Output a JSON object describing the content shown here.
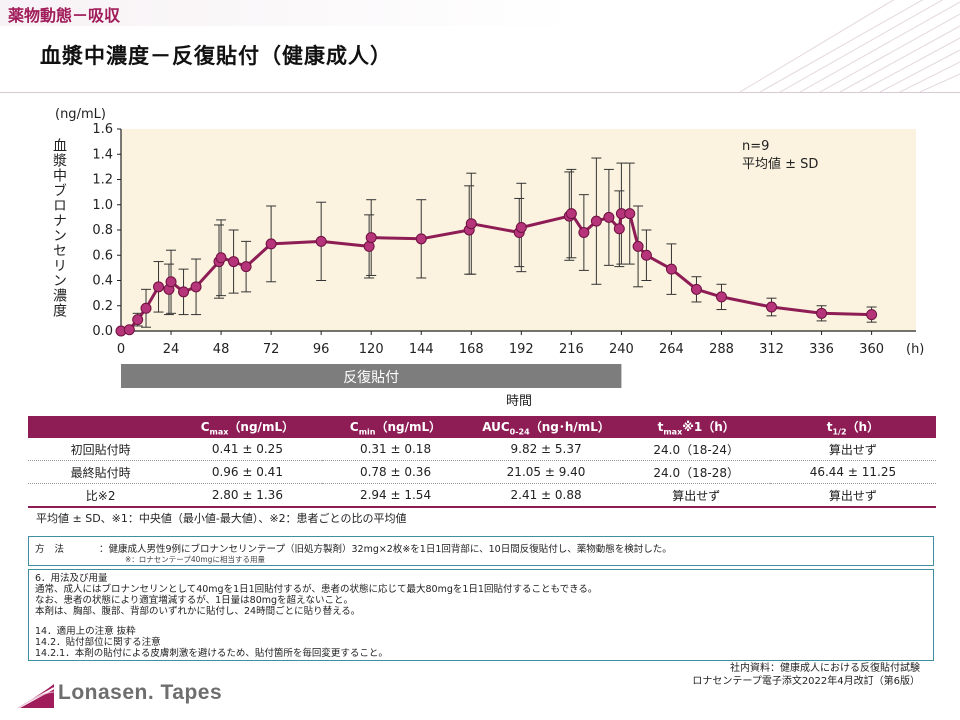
{
  "header": {
    "section": "薬物動態－吸収",
    "title": "血漿中濃度－反復貼付（健康成人）"
  },
  "colors": {
    "accent": "#8e1d56",
    "plot_bg": "#fbf3df",
    "marker": "#b6357a",
    "frame": "#3f8fa0"
  },
  "chart_data": {
    "type": "line",
    "y_unit": "(ng/mL)",
    "x_unit": "(h)",
    "ylabel": "血漿中ブロナンセリン濃度",
    "xlabel": "時間",
    "xlim": [
      0,
      372
    ],
    "ylim": [
      0,
      1.6
    ],
    "xticks": [
      "0",
      "24",
      "48",
      "72",
      "96",
      "120",
      "144",
      "168",
      "192",
      "216",
      "240",
      "264",
      "288",
      "312",
      "336",
      "360"
    ],
    "yticks": [
      "0.0",
      "0.2",
      "0.4",
      "0.6",
      "0.8",
      "1.0",
      "1.2",
      "1.4",
      "1.6"
    ],
    "dosing_bar": {
      "label": "反復貼付",
      "start": 0,
      "end": 240
    },
    "annotation": [
      "n=9",
      "平均値 ± SD"
    ],
    "series": [
      {
        "name": "平均値",
        "points": [
          {
            "x": 0,
            "y": 0.0,
            "sd": 0.0
          },
          {
            "x": 4,
            "y": 0.01,
            "sd": 0.01
          },
          {
            "x": 8,
            "y": 0.09,
            "sd": 0.05
          },
          {
            "x": 12,
            "y": 0.18,
            "sd": 0.15
          },
          {
            "x": 18,
            "y": 0.35,
            "sd": 0.2
          },
          {
            "x": 23,
            "y": 0.33,
            "sd": 0.2
          },
          {
            "x": 24,
            "y": 0.39,
            "sd": 0.25
          },
          {
            "x": 30,
            "y": 0.31,
            "sd": 0.18
          },
          {
            "x": 36,
            "y": 0.35,
            "sd": 0.22
          },
          {
            "x": 47,
            "y": 0.55,
            "sd": 0.29
          },
          {
            "x": 48,
            "y": 0.58,
            "sd": 0.3
          },
          {
            "x": 54,
            "y": 0.55,
            "sd": 0.25
          },
          {
            "x": 60,
            "y": 0.51,
            "sd": 0.2
          },
          {
            "x": 72,
            "y": 0.69,
            "sd": 0.3
          },
          {
            "x": 96,
            "y": 0.71,
            "sd": 0.31
          },
          {
            "x": 119,
            "y": 0.67,
            "sd": 0.25
          },
          {
            "x": 120,
            "y": 0.74,
            "sd": 0.3
          },
          {
            "x": 144,
            "y": 0.73,
            "sd": 0.31
          },
          {
            "x": 167,
            "y": 0.8,
            "sd": 0.35
          },
          {
            "x": 168,
            "y": 0.85,
            "sd": 0.4
          },
          {
            "x": 191,
            "y": 0.78,
            "sd": 0.27
          },
          {
            "x": 192,
            "y": 0.82,
            "sd": 0.35
          },
          {
            "x": 215,
            "y": 0.91,
            "sd": 0.35
          },
          {
            "x": 216,
            "y": 0.93,
            "sd": 0.35
          },
          {
            "x": 222,
            "y": 0.78,
            "sd": 0.3
          },
          {
            "x": 228,
            "y": 0.87,
            "sd": 0.5
          },
          {
            "x": 234,
            "y": 0.9,
            "sd": 0.38
          },
          {
            "x": 239,
            "y": 0.81,
            "sd": 0.3
          },
          {
            "x": 240,
            "y": 0.93,
            "sd": 0.4
          },
          {
            "x": 244,
            "y": 0.93,
            "sd": 0.4
          },
          {
            "x": 248,
            "y": 0.67,
            "sd": 0.32
          },
          {
            "x": 252,
            "y": 0.6,
            "sd": 0.2
          },
          {
            "x": 264,
            "y": 0.49,
            "sd": 0.2
          },
          {
            "x": 276,
            "y": 0.33,
            "sd": 0.1
          },
          {
            "x": 288,
            "y": 0.27,
            "sd": 0.1
          },
          {
            "x": 312,
            "y": 0.19,
            "sd": 0.07
          },
          {
            "x": 336,
            "y": 0.14,
            "sd": 0.06
          },
          {
            "x": 360,
            "y": 0.13,
            "sd": 0.06
          }
        ]
      }
    ]
  },
  "table": {
    "headers": [
      {
        "base": "",
        "sub": "",
        "rest": ""
      },
      {
        "base": "C",
        "sub": "max",
        "rest": "（ng/mL）"
      },
      {
        "base": "C",
        "sub": "min",
        "rest": "（ng/mL）"
      },
      {
        "base": "AUC",
        "sub": "0-24",
        "rest": "（ng･h/mL）"
      },
      {
        "base": "t",
        "sub": "max",
        "rest": "※1（h）"
      },
      {
        "base": "t",
        "sub": "1/2",
        "rest": "（h）"
      }
    ],
    "rows": [
      [
        "初回貼付時",
        "0.41 ± 0.25",
        "0.31 ± 0.18",
        "9.82 ± 5.37",
        "24.0（18-24）",
        "算出せず"
      ],
      [
        "最終貼付時",
        "0.96 ± 0.41",
        "0.78 ± 0.36",
        "21.05 ± 9.40",
        "24.0（18-28）",
        "46.44 ± 11.25"
      ],
      [
        "比※2",
        "2.80 ± 1.36",
        "2.94 ± 1.54",
        "2.41 ± 0.88",
        "算出せず",
        "算出せず"
      ]
    ],
    "footnote": "平均値 ± SD、※1：中央値（最小値-最大値）、※2：患者ごとの比の平均値"
  },
  "method": {
    "label": "方法",
    "text": "：健康成人男性9例にブロナンセリンテープ（旧処方製剤）32mg×2枚※を1日1回背部に、10日間反復貼付し、薬物動態を検討した。",
    "note": "※：ロナセンテープ40mgに相当する用量"
  },
  "info": {
    "dosage": [
      "6．用法及び用量",
      "通常、成人にはブロナンセリンとして40mgを1日1回貼付するが、患者の状態に応じて最大80mgを1日1回貼付することもできる。",
      "なお、患者の状態により適宜増減するが、1日量は80mgを超えないこと。",
      "本剤は、胸部、腹部、背部のいずれかに貼付し、24時間ごとに貼り替える。"
    ],
    "precautions": [
      "14．適用上の注意 抜粋",
      "14.2．貼付部位に関する注意",
      "14.2.1．本剤の貼付による皮膚刺激を避けるため、貼付箇所を毎回変更すること。"
    ]
  },
  "source": [
    "社内資料：健康成人における反復貼付試験",
    "ロナセンテープ電子添文2022年4月改訂（第6版）"
  ],
  "brand": "Lonasen. Tapes"
}
